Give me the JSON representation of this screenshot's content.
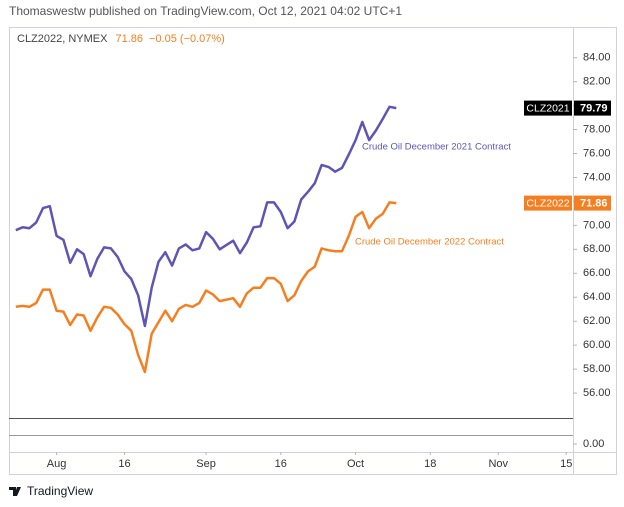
{
  "header": "Thomaswestw published on TradingView.com, Oct 12, 2021 04:02 UTC+1",
  "footer": "TradingView",
  "chart_data": {
    "type": "line",
    "symbol": "CLZ2022, NYMEX",
    "change": "−0.05 (−0.07%)",
    "x": [
      "2021-07-23",
      "2021-07-26",
      "2021-07-27",
      "2021-07-28",
      "2021-07-29",
      "2021-07-30",
      "2021-08-02",
      "2021-08-03",
      "2021-08-04",
      "2021-08-05",
      "2021-08-06",
      "2021-08-09",
      "2021-08-10",
      "2021-08-11",
      "2021-08-12",
      "2021-08-13",
      "2021-08-16",
      "2021-08-17",
      "2021-08-18",
      "2021-08-19",
      "2021-08-20",
      "2021-08-23",
      "2021-08-24",
      "2021-08-25",
      "2021-08-26",
      "2021-08-27",
      "2021-08-30",
      "2021-08-31",
      "2021-09-01",
      "2021-09-02",
      "2021-09-03",
      "2021-09-07",
      "2021-09-08",
      "2021-09-09",
      "2021-09-10",
      "2021-09-13",
      "2021-09-14",
      "2021-09-15",
      "2021-09-16",
      "2021-09-17",
      "2021-09-20",
      "2021-09-21",
      "2021-09-22",
      "2021-09-23",
      "2021-09-24",
      "2021-09-27",
      "2021-09-28",
      "2021-09-29",
      "2021-09-30",
      "2021-10-01",
      "2021-10-04",
      "2021-10-05",
      "2021-10-06",
      "2021-10-07",
      "2021-10-08",
      "2021-10-11"
    ],
    "series": [
      {
        "name": "CLZ2021",
        "color": "#5e55b4",
        "label_color": "#000000",
        "values": [
          69.6,
          69.84,
          69.76,
          70.24,
          71.44,
          71.6,
          69.12,
          68.8,
          66.88,
          68.0,
          67.6,
          65.76,
          67.2,
          68.16,
          68.08,
          67.36,
          66.16,
          65.52,
          64.16,
          61.6,
          64.8,
          66.96,
          67.76,
          66.64,
          68.08,
          68.4,
          67.92,
          68.08,
          69.44,
          68.88,
          68.0,
          68.72,
          67.68,
          68.56,
          69.84,
          69.92,
          71.92,
          71.92,
          71.12,
          69.76,
          70.32,
          72.16,
          72.8,
          73.52,
          75.04,
          74.88,
          74.48,
          74.8,
          75.92,
          77.12,
          78.64,
          77.12,
          77.92,
          78.88,
          79.9,
          79.79
        ]
      },
      {
        "name": "CLZ2022",
        "color": "#f57f20",
        "label_color": "#f57f20",
        "values": [
          63.2,
          63.28,
          63.2,
          63.52,
          64.64,
          64.64,
          62.88,
          62.8,
          61.68,
          62.56,
          62.48,
          61.2,
          62.32,
          63.2,
          63.12,
          62.56,
          61.76,
          61.2,
          59.2,
          57.76,
          60.96,
          61.92,
          62.88,
          62.0,
          63.04,
          63.36,
          63.2,
          63.52,
          64.56,
          64.24,
          63.68,
          63.92,
          63.2,
          64.32,
          64.8,
          64.8,
          65.6,
          65.6,
          65.12,
          63.68,
          64.16,
          65.36,
          66.16,
          66.56,
          68.08,
          67.92,
          67.84,
          67.84,
          69.12,
          70.72,
          71.12,
          69.76,
          70.56,
          70.96,
          71.92,
          71.86
        ]
      }
    ],
    "annotations": [
      "Crude Oil December 2021 Contract",
      "Crude Oil December 2022 Contract"
    ],
    "xlim": [
      "2021-07-22",
      "2021-11-16"
    ],
    "xticks": [
      {
        "value": "2021-08-02",
        "label": "Aug"
      },
      {
        "value": "2021-08-16",
        "label": "16"
      },
      {
        "value": "2021-09-01",
        "label": "Sep"
      },
      {
        "value": "2021-09-16",
        "label": "16"
      },
      {
        "value": "2021-10-01",
        "label": "Oct"
      },
      {
        "value": "2021-10-18",
        "label": "18"
      },
      {
        "value": "2021-11-01",
        "label": "Nov"
      },
      {
        "value": "2021-11-15",
        "label": "15"
      }
    ],
    "ylim": [
      53.92,
      86.56
    ],
    "yticks": [
      {
        "value": 56,
        "label": "56.00"
      },
      {
        "value": 58,
        "label": "58.00"
      },
      {
        "value": 60,
        "label": "60.00"
      },
      {
        "value": 62,
        "label": "62.00"
      },
      {
        "value": 64,
        "label": "64.00"
      },
      {
        "value": 66,
        "label": "66.00"
      },
      {
        "value": 68,
        "label": "68.00"
      },
      {
        "value": 70,
        "label": "70.00"
      },
      {
        "value": 72,
        "label": "72.00"
      },
      {
        "value": 74,
        "label": "74.00"
      },
      {
        "value": 76,
        "label": "76.00"
      },
      {
        "value": 78,
        "label": "78.00"
      },
      {
        "value": 80,
        "label": "80.00"
      },
      {
        "value": 82,
        "label": "82.00"
      },
      {
        "value": 84,
        "label": "84.00"
      }
    ],
    "lower_pane": {
      "ylim": [
        -1,
        1
      ],
      "yticks": [
        {
          "value": 0,
          "label": "0.00"
        }
      ]
    },
    "grid": false
  }
}
